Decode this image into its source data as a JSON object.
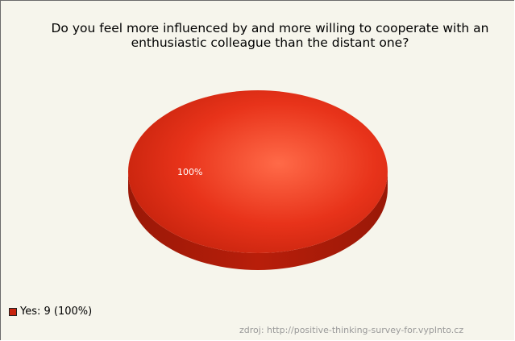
{
  "chart_data": {
    "type": "pie",
    "title_lines": [
      "Do you feel more influenced by and more willing to cooperate with an",
      "enthusiastic colleague than the distant one?"
    ],
    "slices": [
      {
        "label": "Yes",
        "count": 9,
        "percent": 100,
        "percent_label": "100%",
        "color": "#e8331a",
        "legend_text": "Yes: 9 (100%)"
      }
    ],
    "legend_placement": "bottom-left",
    "source": "zdroj: http://positive-thinking-survey-for.vyplnto.cz"
  },
  "colors": {
    "background": "#f6f5ec",
    "slice_light": "#ff6a48",
    "slice_mid": "#e8331a",
    "slice_dark": "#b81e0a",
    "slice_side": "#a01a08"
  }
}
